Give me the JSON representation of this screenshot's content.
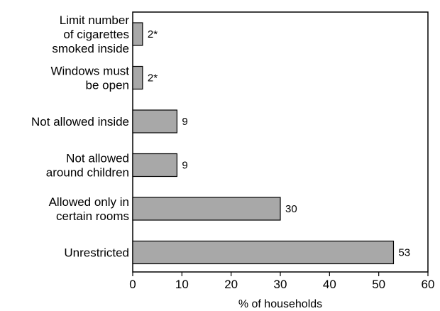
{
  "chart_data": {
    "type": "bar",
    "orientation": "horizontal",
    "categories": [
      [
        "Limit number",
        "of cigarettes",
        "smoked inside"
      ],
      [
        "Windows must",
        "be open"
      ],
      [
        "Not allowed inside"
      ],
      [
        "Not allowed",
        "around children"
      ],
      [
        "Allowed only in",
        "certain rooms"
      ],
      [
        "Unrestricted"
      ]
    ],
    "values": [
      2,
      2,
      9,
      9,
      30,
      53
    ],
    "data_labels": [
      "2*",
      "2*",
      "9",
      "9",
      "30",
      "53"
    ],
    "xlabel": "% of households",
    "ylabel": "",
    "title": "",
    "xlim": [
      0,
      60
    ],
    "xticks": [
      "0",
      "10",
      "20",
      "30",
      "40",
      "50",
      "60"
    ],
    "grid": false,
    "legend": "none",
    "bar_color": "#a8a8a8",
    "bar_edge_color": "#000000"
  }
}
